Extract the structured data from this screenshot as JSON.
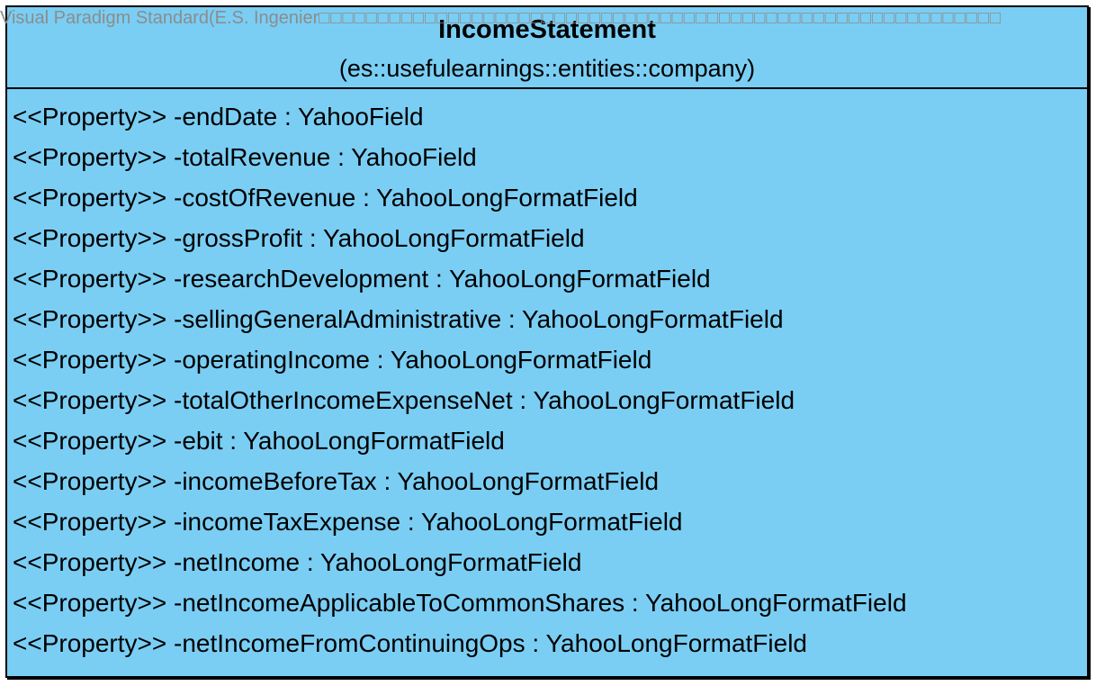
{
  "watermark": {
    "text": "Visual Paradigm Standard(E.S. Ingenier",
    "boxes": "□□□□□□□□□□□□□□□□□□□□□□□□□□□□□□□□□□□□□□□□□□□□□□□□□□□□□□□□□□"
  },
  "class": {
    "name": "IncomeStatement",
    "namespace": "(es::usefulearnings::entities::company)",
    "fill_color": "#7ACEF4",
    "border_color": "#000000",
    "attributes": [
      "<<Property>> -endDate : YahooField",
      "<<Property>> -totalRevenue : YahooField",
      "<<Property>> -costOfRevenue : YahooLongFormatField",
      "<<Property>> -grossProfit : YahooLongFormatField",
      "<<Property>> -researchDevelopment : YahooLongFormatField",
      "<<Property>> -sellingGeneralAdministrative : YahooLongFormatField",
      "<<Property>> -operatingIncome : YahooLongFormatField",
      "<<Property>> -totalOtherIncomeExpenseNet : YahooLongFormatField",
      "<<Property>> -ebit : YahooLongFormatField",
      "<<Property>> -incomeBeforeTax : YahooLongFormatField",
      "<<Property>> -incomeTaxExpense : YahooLongFormatField",
      "<<Property>> -netIncome : YahooLongFormatField",
      "<<Property>> -netIncomeApplicableToCommonShares : YahooLongFormatField",
      "<<Property>> -netIncomeFromContinuingOps : YahooLongFormatField"
    ]
  }
}
